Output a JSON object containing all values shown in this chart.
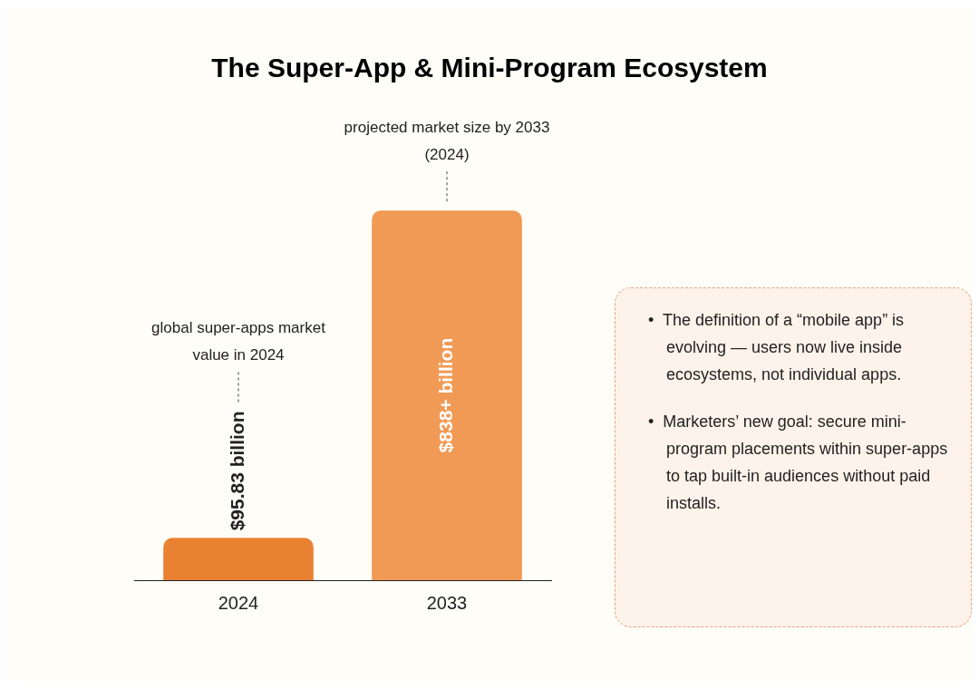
{
  "chart_data": [
    {
      "type": "bar",
      "title": "The Super-App & Mini-Program Ecosystem",
      "categories": [
        "2024",
        "2033"
      ],
      "values": [
        95.83,
        838
      ],
      "colors": [
        "#e98133",
        "#f19a55"
      ],
      "value_labels": [
        "$95.83 billion",
        "$838+ billion"
      ],
      "annotations": [
        "global super-apps market value in 2024",
        "projected market size by 2033 (2024)"
      ]
    },
    {
      "type": "other",
      "annotations": [
        "•  The definition of a “mobile app” is evolving — users now live inside ecosystems, not individual apps.",
        "•  Marketers’ new goal: secure mini-program placements within super-apps to tap built-in audiences without paid installs."
      ]
    }
  ]
}
